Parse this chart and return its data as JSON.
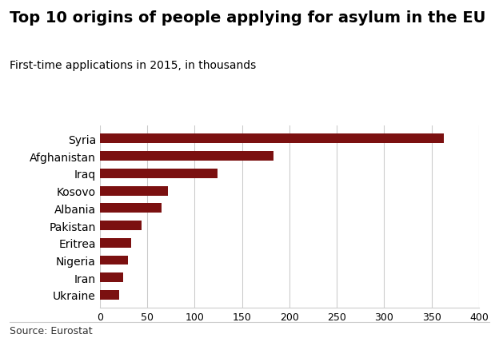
{
  "title": "Top 10 origins of people applying for asylum in the EU",
  "subtitle": "First-time applications in 2015, in thousands",
  "source": "Source: Eurostat",
  "categories": [
    "Ukraine",
    "Iran",
    "Nigeria",
    "Eritrea",
    "Pakistan",
    "Albania",
    "Kosovo",
    "Iraq",
    "Afghanistan",
    "Syria"
  ],
  "values": [
    20,
    25,
    30,
    33,
    44,
    65,
    72,
    124,
    183,
    363
  ],
  "bar_color": "#7B1010",
  "xlim": [
    0,
    400
  ],
  "xticks": [
    0,
    50,
    100,
    150,
    200,
    250,
    300,
    350,
    400
  ],
  "background_color": "#ffffff",
  "title_fontsize": 14,
  "subtitle_fontsize": 10,
  "label_fontsize": 10,
  "tick_fontsize": 9,
  "source_fontsize": 9
}
